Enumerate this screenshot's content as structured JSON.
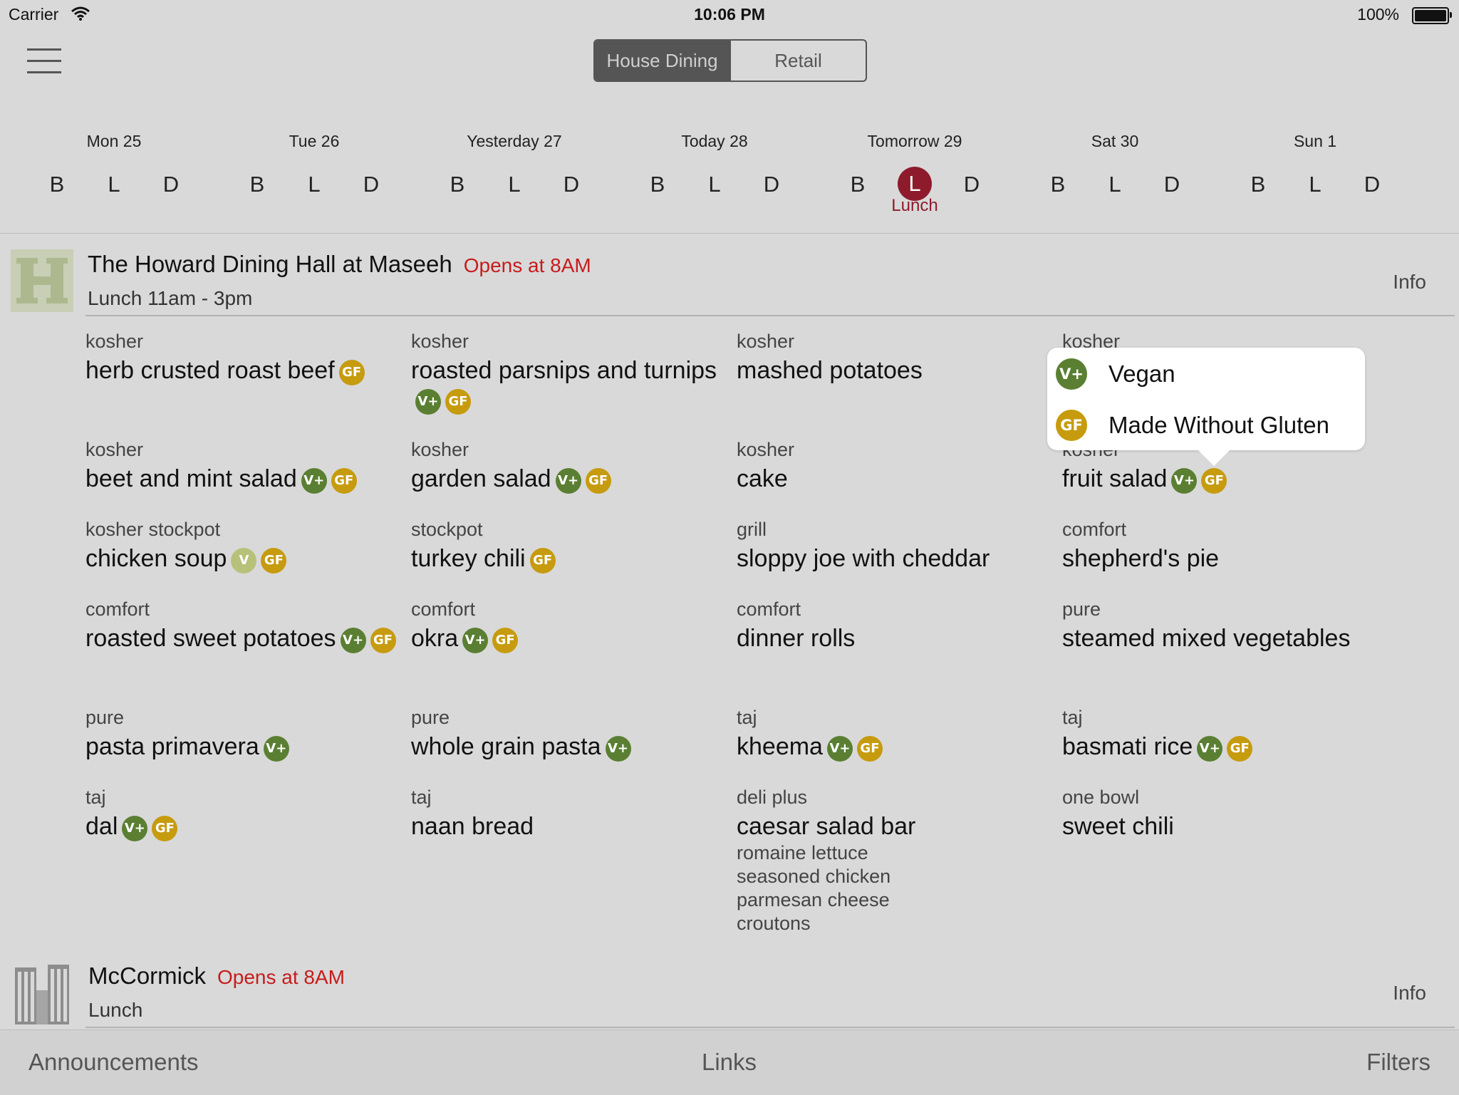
{
  "status_bar": {
    "carrier": "Carrier",
    "time": "10:06 PM",
    "battery": "100%"
  },
  "nav": {
    "segments": [
      "House Dining",
      "Retail"
    ],
    "selected_segment": "House Dining"
  },
  "days": [
    {
      "label": "Mon 25",
      "meals": [
        "B",
        "L",
        "D"
      ]
    },
    {
      "label": "Tue 26",
      "meals": [
        "B",
        "L",
        "D"
      ]
    },
    {
      "label": "Yesterday 27",
      "meals": [
        "B",
        "L",
        "D"
      ]
    },
    {
      "label": "Today 28",
      "meals": [
        "B",
        "L",
        "D"
      ]
    },
    {
      "label": "Tomorrow 29",
      "meals": [
        "B",
        "L",
        "D"
      ],
      "selected_meal": "L",
      "selected_label": "Lunch"
    },
    {
      "label": "Sat 30",
      "meals": [
        "B",
        "L",
        "D"
      ]
    },
    {
      "label": "Sun 1",
      "meals": [
        "B",
        "L",
        "D"
      ]
    }
  ],
  "halls": [
    {
      "name": "The Howard Dining Hall at Maseeh",
      "status": "Opens at 8AM",
      "hours": "Lunch 11am - 3pm",
      "info": "Info"
    },
    {
      "name": "McCormick",
      "status": "Opens at 8AM",
      "hours": "Lunch",
      "info": "Info"
    }
  ],
  "badges": {
    "vplus": "V+",
    "gf": "GF",
    "v": "V"
  },
  "menu_items": [
    {
      "station": "kosher",
      "dish": "herb crusted roast beef",
      "badges": [
        "gf"
      ]
    },
    {
      "station": "kosher",
      "dish": "roasted parsnips and turnips",
      "badges": [
        "vplus",
        "gf"
      ]
    },
    {
      "station": "kosher",
      "dish": "mashed potatoes",
      "badges": []
    },
    {
      "station": "kosher",
      "dish": "",
      "badges": []
    },
    {
      "station": "kosher",
      "dish": "beet and mint salad",
      "badges": [
        "vplus",
        "gf"
      ]
    },
    {
      "station": "kosher",
      "dish": "garden salad",
      "badges": [
        "vplus",
        "gf"
      ]
    },
    {
      "station": "kosher",
      "dish": "cake",
      "badges": []
    },
    {
      "station": "kosher",
      "dish": "fruit salad",
      "badges": [
        "vplus",
        "gf"
      ]
    },
    {
      "station": "kosher stockpot",
      "dish": "chicken soup",
      "badges": [
        "v",
        "gf"
      ]
    },
    {
      "station": "stockpot",
      "dish": "turkey chili",
      "badges": [
        "gf"
      ]
    },
    {
      "station": "grill",
      "dish": "sloppy joe with cheddar",
      "badges": []
    },
    {
      "station": "comfort",
      "dish": "shepherd's pie",
      "badges": []
    },
    {
      "station": "comfort",
      "dish": "roasted sweet potatoes",
      "badges": [
        "vplus",
        "gf"
      ]
    },
    {
      "station": "comfort",
      "dish": "okra",
      "badges": [
        "vplus",
        "gf"
      ]
    },
    {
      "station": "comfort",
      "dish": "dinner rolls",
      "badges": []
    },
    {
      "station": "pure",
      "dish": "steamed mixed vegetables",
      "badges": []
    },
    {
      "station": "pure",
      "dish": "pasta primavera",
      "badges": [
        "vplus"
      ]
    },
    {
      "station": "pure",
      "dish": "whole grain pasta",
      "badges": [
        "vplus"
      ]
    },
    {
      "station": "taj",
      "dish": "kheema",
      "badges": [
        "vplus",
        "gf"
      ]
    },
    {
      "station": "taj",
      "dish": "basmati rice",
      "badges": [
        "vplus",
        "gf"
      ]
    },
    {
      "station": "taj",
      "dish": "dal",
      "badges": [
        "vplus",
        "gf"
      ]
    },
    {
      "station": "taj",
      "dish": "naan bread",
      "badges": []
    },
    {
      "station": "deli plus",
      "dish": "caesar salad bar",
      "badges": [],
      "sub_items": [
        "romaine lettuce",
        "seasoned chicken",
        "parmesan cheese",
        "croutons"
      ]
    },
    {
      "station": "one bowl",
      "dish": "sweet chili",
      "badges": []
    }
  ],
  "legend_popover": [
    {
      "badge": "V+",
      "label": "Vegan"
    },
    {
      "badge": "GF",
      "label": "Made Without Gluten"
    }
  ],
  "bottom_bar": {
    "announcements": "Announcements",
    "links": "Links",
    "filters": "Filters"
  },
  "colors": {
    "background": "#d9d9d9",
    "accent": "#8e1b2c",
    "open_status": "#c71c1c",
    "vegan_badge": "#5a7f32",
    "gluten_free_badge": "#c69b0e",
    "vegetarian_badge": "#b7c17a"
  }
}
